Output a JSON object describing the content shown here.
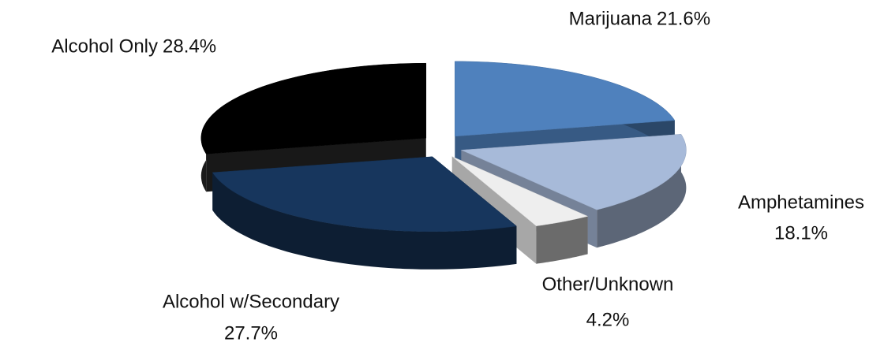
{
  "chart_data": {
    "type": "pie",
    "categories": [
      "Marijuana",
      "Amphetamines",
      "Other/Unknown",
      "Alcohol w/Secondary",
      "Alcohol Only"
    ],
    "values": [
      21.6,
      18.1,
      4.2,
      27.7,
      28.4
    ],
    "value_labels": [
      "21.6%",
      "18.1%",
      "4.2%",
      "27.7%",
      "28.4%"
    ],
    "colors": [
      "#4f81bd",
      "#a7bad9",
      "#eeeeee",
      "#17365d",
      "#000000"
    ]
  }
}
